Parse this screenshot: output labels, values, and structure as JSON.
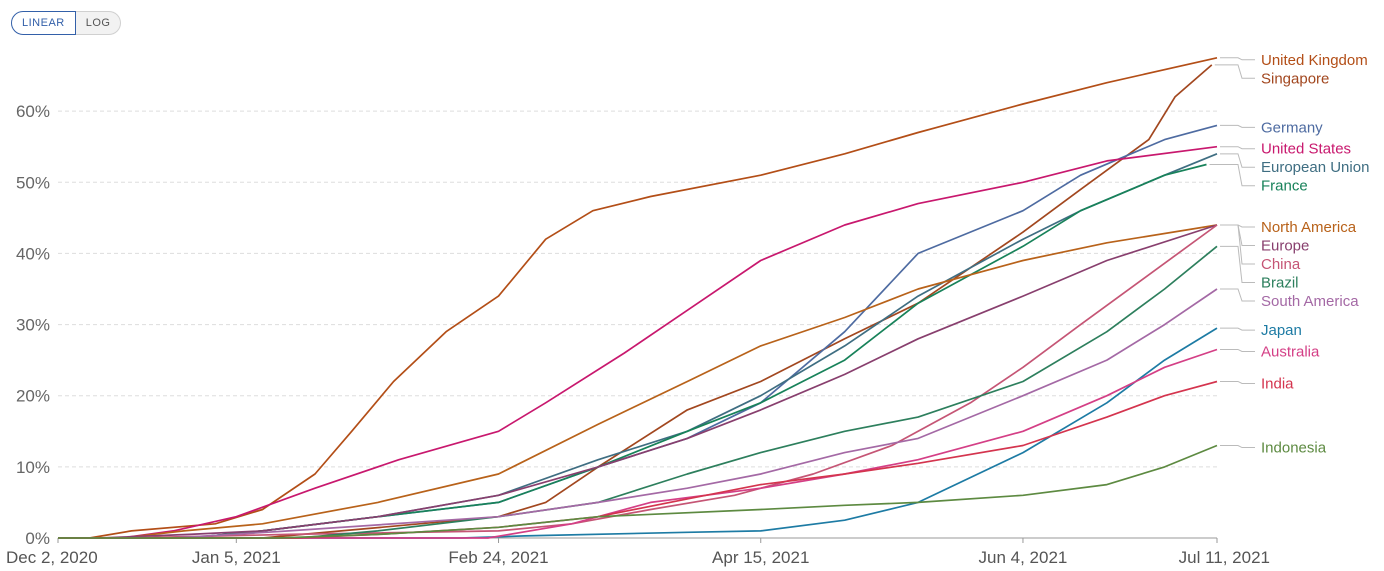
{
  "controls": {
    "linear_label": "LINEAR",
    "log_label": "LOG",
    "active": "linear"
  },
  "chart_data": {
    "type": "line",
    "title": "",
    "xlabel": "",
    "ylabel": "",
    "x_range": [
      "2020-12-02",
      "2021-07-11"
    ],
    "ylim": [
      0,
      70
    ],
    "y_ticks": [
      0,
      10,
      20,
      30,
      40,
      50,
      60
    ],
    "y_tick_labels": [
      "0%",
      "10%",
      "20%",
      "30%",
      "40%",
      "50%",
      "60%"
    ],
    "x_ticks": [
      "2020-12-02",
      "2021-01-05",
      "2021-02-24",
      "2021-04-15",
      "2021-06-04",
      "2021-07-11"
    ],
    "x_tick_labels": [
      "Dec 2, 2020",
      "Jan 5, 2021",
      "Feb 24, 2021",
      "Apr 15, 2021",
      "Jun 4, 2021",
      "Jul 11, 2021"
    ],
    "grid": "horizontal dashed",
    "legend": "right, end-of-line labels",
    "series": [
      {
        "name": "United Kingdom",
        "color": "#b34e17",
        "points": [
          [
            "2020-12-08",
            0
          ],
          [
            "2020-12-16",
            1
          ],
          [
            "2021-01-01",
            2
          ],
          [
            "2021-01-10",
            4
          ],
          [
            "2021-01-20",
            9
          ],
          [
            "2021-01-27",
            15
          ],
          [
            "2021-02-04",
            22
          ],
          [
            "2021-02-14",
            29
          ],
          [
            "2021-02-24",
            34
          ],
          [
            "2021-03-05",
            42
          ],
          [
            "2021-03-14",
            46
          ],
          [
            "2021-03-25",
            48
          ],
          [
            "2021-04-15",
            51
          ],
          [
            "2021-05-01",
            54
          ],
          [
            "2021-05-15",
            57
          ],
          [
            "2021-06-04",
            61
          ],
          [
            "2021-06-20",
            64
          ],
          [
            "2021-07-11",
            67.5
          ]
        ]
      },
      {
        "name": "Singapore",
        "color": "#a2471f",
        "points": [
          [
            "2021-01-10",
            0
          ],
          [
            "2021-01-25",
            1
          ],
          [
            "2021-02-24",
            3
          ],
          [
            "2021-03-05",
            5
          ],
          [
            "2021-03-15",
            10
          ],
          [
            "2021-04-01",
            18
          ],
          [
            "2021-04-15",
            22
          ],
          [
            "2021-05-01",
            28
          ],
          [
            "2021-05-15",
            33
          ],
          [
            "2021-06-04",
            43
          ],
          [
            "2021-06-15",
            49
          ],
          [
            "2021-06-28",
            56
          ],
          [
            "2021-07-03",
            62
          ],
          [
            "2021-07-10",
            66.5
          ]
        ]
      },
      {
        "name": "Germany",
        "color": "#4e6ba1",
        "points": [
          [
            "2020-12-27",
            0
          ],
          [
            "2021-01-10",
            1
          ],
          [
            "2021-02-01",
            3
          ],
          [
            "2021-02-24",
            5
          ],
          [
            "2021-03-15",
            10
          ],
          [
            "2021-04-01",
            14
          ],
          [
            "2021-04-15",
            19
          ],
          [
            "2021-05-01",
            29
          ],
          [
            "2021-05-15",
            40
          ],
          [
            "2021-06-04",
            46
          ],
          [
            "2021-06-15",
            51
          ],
          [
            "2021-07-01",
            56
          ],
          [
            "2021-07-11",
            58
          ]
        ]
      },
      {
        "name": "United States",
        "color": "#c8186e",
        "points": [
          [
            "2020-12-14",
            0
          ],
          [
            "2020-12-24",
            1
          ],
          [
            "2021-01-05",
            3
          ],
          [
            "2021-01-20",
            7
          ],
          [
            "2021-02-05",
            11
          ],
          [
            "2021-02-24",
            15
          ],
          [
            "2021-03-05",
            19
          ],
          [
            "2021-03-20",
            26
          ],
          [
            "2021-04-01",
            32
          ],
          [
            "2021-04-15",
            39
          ],
          [
            "2021-05-01",
            44
          ],
          [
            "2021-05-15",
            47
          ],
          [
            "2021-06-04",
            50
          ],
          [
            "2021-06-20",
            53
          ],
          [
            "2021-07-11",
            55
          ]
        ]
      },
      {
        "name": "European Union",
        "color": "#3f6e82",
        "points": [
          [
            "2020-12-27",
            0
          ],
          [
            "2021-01-10",
            1
          ],
          [
            "2021-02-01",
            3
          ],
          [
            "2021-02-24",
            6
          ],
          [
            "2021-03-15",
            11
          ],
          [
            "2021-04-01",
            15
          ],
          [
            "2021-04-15",
            20
          ],
          [
            "2021-05-01",
            27
          ],
          [
            "2021-05-15",
            34
          ],
          [
            "2021-06-04",
            42
          ],
          [
            "2021-06-15",
            46
          ],
          [
            "2021-07-01",
            51
          ],
          [
            "2021-07-11",
            54
          ]
        ]
      },
      {
        "name": "France",
        "color": "#18825a",
        "points": [
          [
            "2020-12-27",
            0
          ],
          [
            "2021-01-10",
            1
          ],
          [
            "2021-02-01",
            3
          ],
          [
            "2021-02-24",
            5
          ],
          [
            "2021-03-15",
            10
          ],
          [
            "2021-04-01",
            15
          ],
          [
            "2021-04-15",
            19
          ],
          [
            "2021-05-01",
            25
          ],
          [
            "2021-05-15",
            33
          ],
          [
            "2021-06-04",
            41
          ],
          [
            "2021-06-15",
            46
          ],
          [
            "2021-07-01",
            51
          ],
          [
            "2021-07-09",
            52.5
          ]
        ]
      },
      {
        "name": "North America",
        "color": "#b8621a",
        "points": [
          [
            "2020-12-14",
            0
          ],
          [
            "2020-12-26",
            1
          ],
          [
            "2021-01-10",
            2
          ],
          [
            "2021-02-01",
            5
          ],
          [
            "2021-02-24",
            9
          ],
          [
            "2021-03-15",
            16
          ],
          [
            "2021-04-01",
            22
          ],
          [
            "2021-04-15",
            27
          ],
          [
            "2021-05-01",
            31
          ],
          [
            "2021-05-15",
            35
          ],
          [
            "2021-06-04",
            39
          ],
          [
            "2021-06-20",
            41.5
          ],
          [
            "2021-07-11",
            44
          ]
        ]
      },
      {
        "name": "Europe",
        "color": "#883f6e",
        "points": [
          [
            "2020-12-10",
            0
          ],
          [
            "2020-12-27",
            0.5
          ],
          [
            "2021-01-10",
            1
          ],
          [
            "2021-02-01",
            3
          ],
          [
            "2021-02-24",
            6
          ],
          [
            "2021-03-15",
            10
          ],
          [
            "2021-04-01",
            14
          ],
          [
            "2021-04-15",
            18
          ],
          [
            "2021-05-01",
            23
          ],
          [
            "2021-05-15",
            28
          ],
          [
            "2021-06-04",
            34
          ],
          [
            "2021-06-20",
            39
          ],
          [
            "2021-07-11",
            44
          ]
        ]
      },
      {
        "name": "China",
        "color": "#c55575",
        "points": [
          [
            "2020-12-15",
            0
          ],
          [
            "2021-01-15",
            0.5
          ],
          [
            "2021-02-24",
            1
          ],
          [
            "2021-03-10",
            2
          ],
          [
            "2021-03-25",
            4
          ],
          [
            "2021-04-10",
            6
          ],
          [
            "2021-04-25",
            9
          ],
          [
            "2021-05-10",
            13
          ],
          [
            "2021-05-25",
            19
          ],
          [
            "2021-06-04",
            24
          ],
          [
            "2021-06-15",
            30
          ],
          [
            "2021-06-28",
            37
          ],
          [
            "2021-07-11",
            44
          ]
        ]
      },
      {
        "name": "Brazil",
        "color": "#2d7f5d",
        "points": [
          [
            "2021-01-17",
            0
          ],
          [
            "2021-02-01",
            1
          ],
          [
            "2021-02-24",
            3
          ],
          [
            "2021-03-15",
            5
          ],
          [
            "2021-04-01",
            9
          ],
          [
            "2021-04-15",
            12
          ],
          [
            "2021-05-01",
            15
          ],
          [
            "2021-05-15",
            17
          ],
          [
            "2021-06-04",
            22
          ],
          [
            "2021-06-20",
            29
          ],
          [
            "2021-07-01",
            35
          ],
          [
            "2021-07-11",
            41
          ]
        ]
      },
      {
        "name": "South America",
        "color": "#a469a5",
        "points": [
          [
            "2020-12-24",
            0
          ],
          [
            "2021-01-15",
            1
          ],
          [
            "2021-02-24",
            3
          ],
          [
            "2021-03-15",
            5
          ],
          [
            "2021-04-01",
            7
          ],
          [
            "2021-04-15",
            9
          ],
          [
            "2021-05-01",
            12
          ],
          [
            "2021-05-15",
            14
          ],
          [
            "2021-06-04",
            20
          ],
          [
            "2021-06-20",
            25
          ],
          [
            "2021-07-01",
            30
          ],
          [
            "2021-07-11",
            35
          ]
        ]
      },
      {
        "name": "Japan",
        "color": "#1d7ba4",
        "points": [
          [
            "2021-02-17",
            0
          ],
          [
            "2021-03-01",
            0.3
          ],
          [
            "2021-04-01",
            0.8
          ],
          [
            "2021-04-15",
            1
          ],
          [
            "2021-05-01",
            2.5
          ],
          [
            "2021-05-15",
            5
          ],
          [
            "2021-06-04",
            12
          ],
          [
            "2021-06-20",
            19
          ],
          [
            "2021-07-01",
            25
          ],
          [
            "2021-07-11",
            29.5
          ]
        ]
      },
      {
        "name": "Australia",
        "color": "#d43f86",
        "points": [
          [
            "2021-02-22",
            0
          ],
          [
            "2021-03-10",
            2
          ],
          [
            "2021-03-25",
            5
          ],
          [
            "2021-04-15",
            7
          ],
          [
            "2021-05-01",
            9
          ],
          [
            "2021-05-15",
            11
          ],
          [
            "2021-06-04",
            15
          ],
          [
            "2021-06-20",
            20
          ],
          [
            "2021-07-01",
            24
          ],
          [
            "2021-07-11",
            26.5
          ]
        ]
      },
      {
        "name": "India",
        "color": "#d4344e",
        "points": [
          [
            "2021-01-16",
            0
          ],
          [
            "2021-02-01",
            0.5
          ],
          [
            "2021-02-24",
            1.5
          ],
          [
            "2021-03-15",
            3
          ],
          [
            "2021-04-01",
            5.5
          ],
          [
            "2021-04-15",
            7.5
          ],
          [
            "2021-05-01",
            9
          ],
          [
            "2021-05-15",
            10.5
          ],
          [
            "2021-06-04",
            13
          ],
          [
            "2021-06-20",
            17
          ],
          [
            "2021-07-01",
            20
          ],
          [
            "2021-07-11",
            22
          ]
        ]
      },
      {
        "name": "Indonesia",
        "color": "#5d8a41",
        "points": [
          [
            "2021-01-13",
            0
          ],
          [
            "2021-02-01",
            0.5
          ],
          [
            "2021-02-24",
            1.5
          ],
          [
            "2021-03-15",
            3
          ],
          [
            "2021-04-15",
            4
          ],
          [
            "2021-05-01",
            4.6
          ],
          [
            "2021-05-15",
            5
          ],
          [
            "2021-06-04",
            6
          ],
          [
            "2021-06-20",
            7.5
          ],
          [
            "2021-07-01",
            10
          ],
          [
            "2021-07-11",
            13
          ]
        ]
      }
    ]
  }
}
